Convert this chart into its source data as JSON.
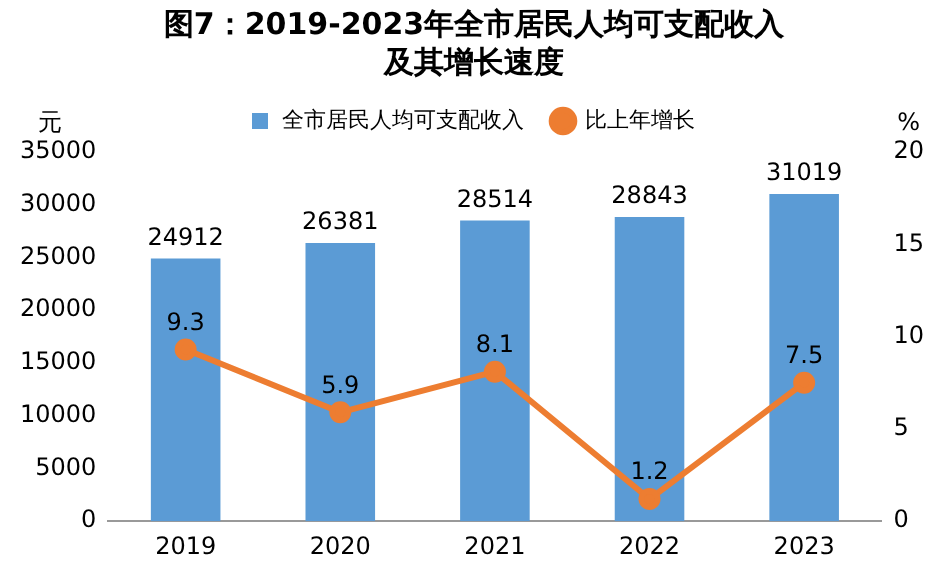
{
  "chart_data": {
    "type": "bar",
    "title": "图7：2019-2023年全市居民人均可支配收入及其增长速度",
    "ylabel": "元",
    "y2label": "%",
    "categories": [
      "2019",
      "2020",
      "2021",
      "2022",
      "2023"
    ],
    "series": [
      {
        "name": "全市居民人均可支配收入",
        "color": "#5b9bd5",
        "values": [
          24912,
          26381,
          28514,
          28843,
          31019
        ]
      },
      {
        "name": "比上年增长",
        "type": "line",
        "axis": "y2",
        "color": "#ed7d31",
        "values": [
          9.3,
          5.9,
          8.1,
          1.2,
          7.5
        ]
      }
    ],
    "ylim": [
      0,
      35000
    ],
    "yticks": [
      0,
      5000,
      10000,
      15000,
      20000,
      25000,
      30000,
      35000
    ],
    "y2lim": [
      0,
      20
    ],
    "y2ticks": [
      0,
      5,
      10,
      15,
      20
    ],
    "grid": false,
    "legend": "top",
    "marker": "circle",
    "line_style": "solid",
    "data_labels": true
  }
}
